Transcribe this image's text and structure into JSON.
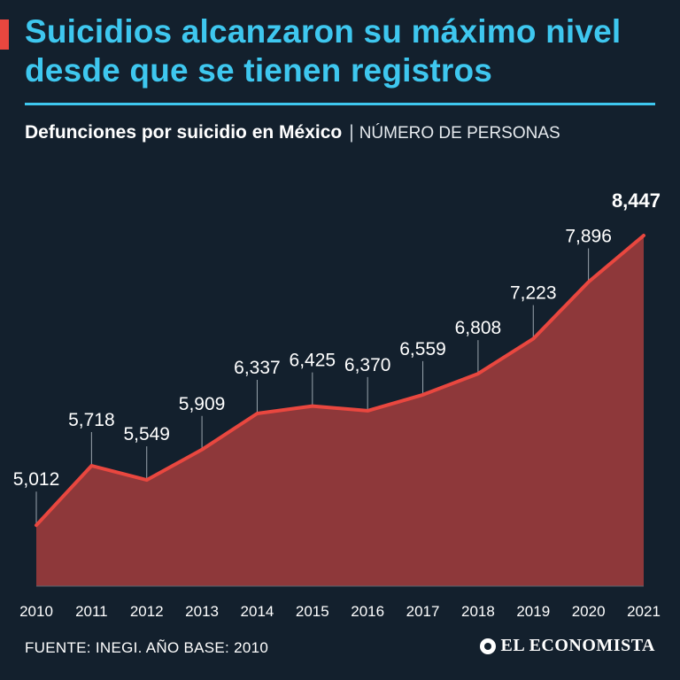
{
  "header": {
    "title": "Suicidios alcanzaron su máximo nivel desde que se tienen registros",
    "subtitle_main": "Defunciones por suicidio en México",
    "subtitle_sep": "|",
    "subtitle_unit": "NÚMERO DE PERSONAS"
  },
  "footer": {
    "source": "FUENTE: INEGI. AÑO BASE: 2010",
    "brand": "EL ECONOMISTA"
  },
  "colors": {
    "background": "#13202d",
    "title": "#3ec7ef",
    "accent": "#e9473f",
    "area_fill": "#8e383a",
    "line": "#e9473f"
  },
  "chart_data": {
    "type": "area",
    "title": "Defunciones por suicidio en México",
    "ylabel": "NÚMERO DE PERSONAS",
    "xlabel": "",
    "categories": [
      "2010",
      "2011",
      "2012",
      "2013",
      "2014",
      "2015",
      "2016",
      "2017",
      "2018",
      "2019",
      "2020",
      "2021"
    ],
    "values": [
      5012,
      5718,
      5549,
      5909,
      6337,
      6425,
      6370,
      6559,
      6808,
      7223,
      7896,
      8447
    ],
    "labels": [
      "5,012",
      "5,718",
      "5,549",
      "5,909",
      "6,337",
      "6,425",
      "6,370",
      "6,559",
      "6,808",
      "7,223",
      "7,896",
      "8,447"
    ],
    "highlight_index": 11,
    "ylim": [
      4290,
      8447
    ]
  }
}
